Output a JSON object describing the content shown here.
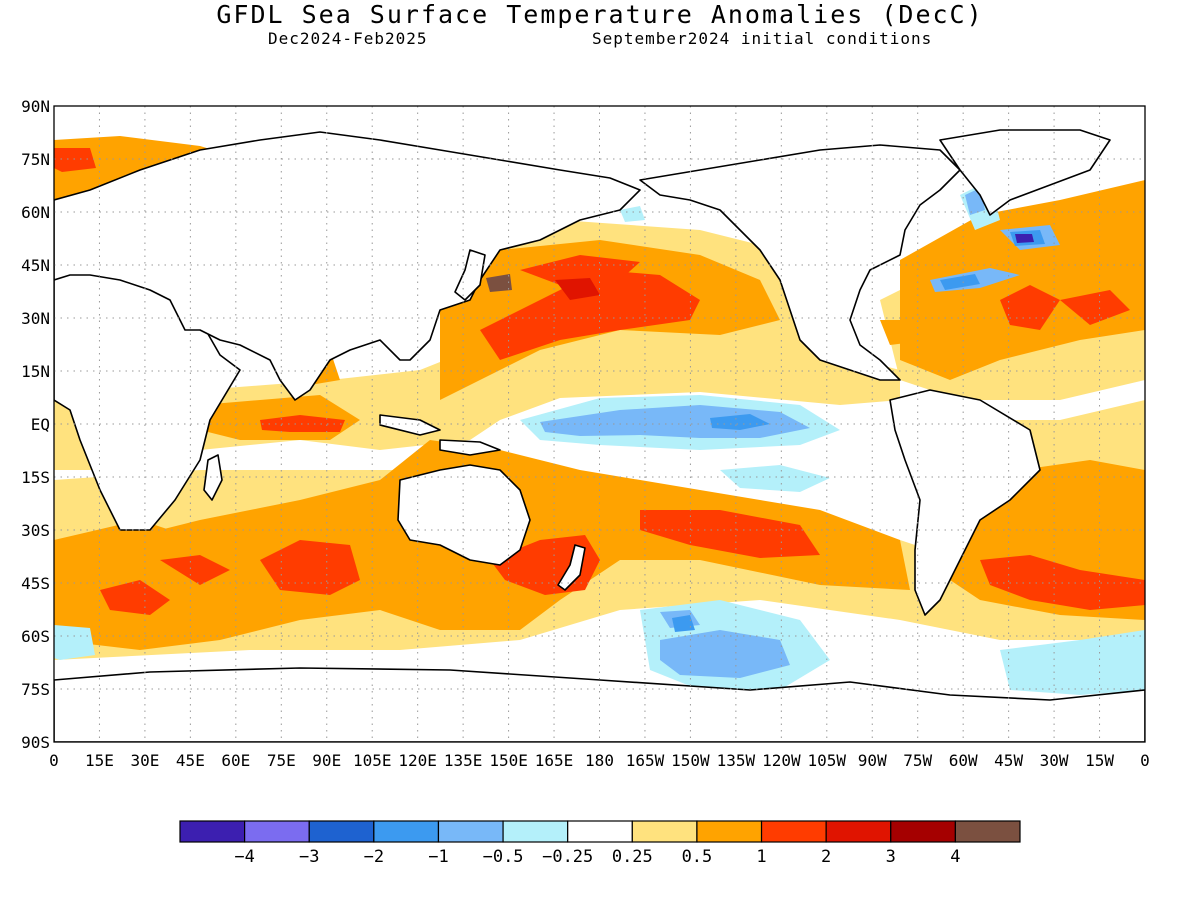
{
  "title": "GFDL Sea Surface Temperature Anomalies (DecC)",
  "subtitle_period": "Dec2024-Feb2025",
  "subtitle_init": "September2024 initial conditions",
  "map": {
    "projection": "equirectangular",
    "lon_range": [
      0,
      360
    ],
    "lat_range": [
      -90,
      90
    ],
    "grid": "dotted",
    "lat_labels": [
      "90N",
      "75N",
      "60N",
      "45N",
      "30N",
      "15N",
      "EQ",
      "15S",
      "30S",
      "45S",
      "60S",
      "75S",
      "90S"
    ],
    "lon_labels": [
      "0",
      "15E",
      "30E",
      "45E",
      "60E",
      "75E",
      "90E",
      "105E",
      "120E",
      "135E",
      "150E",
      "165E",
      "180",
      "165W",
      "150W",
      "135W",
      "120W",
      "105W",
      "90W",
      "75W",
      "60W",
      "45W",
      "30W",
      "15W",
      "0"
    ]
  },
  "colorbar": {
    "colors": [
      "#3c1fb0",
      "#7b6cf0",
      "#1e62d0",
      "#3c9af0",
      "#78b8f8",
      "#b4f0fa",
      "#ffffff",
      "#ffe27e",
      "#ffa300",
      "#ff3c00",
      "#e01400",
      "#a50000",
      "#7b5040"
    ],
    "labels": [
      "-4",
      "-3",
      "-2",
      "-1",
      "-0.5",
      "-0.25",
      "0.25",
      "0.5",
      "1",
      "2",
      "3",
      "4"
    ]
  },
  "colors": {
    "land": "#ffffff",
    "coastline": "#000000"
  }
}
